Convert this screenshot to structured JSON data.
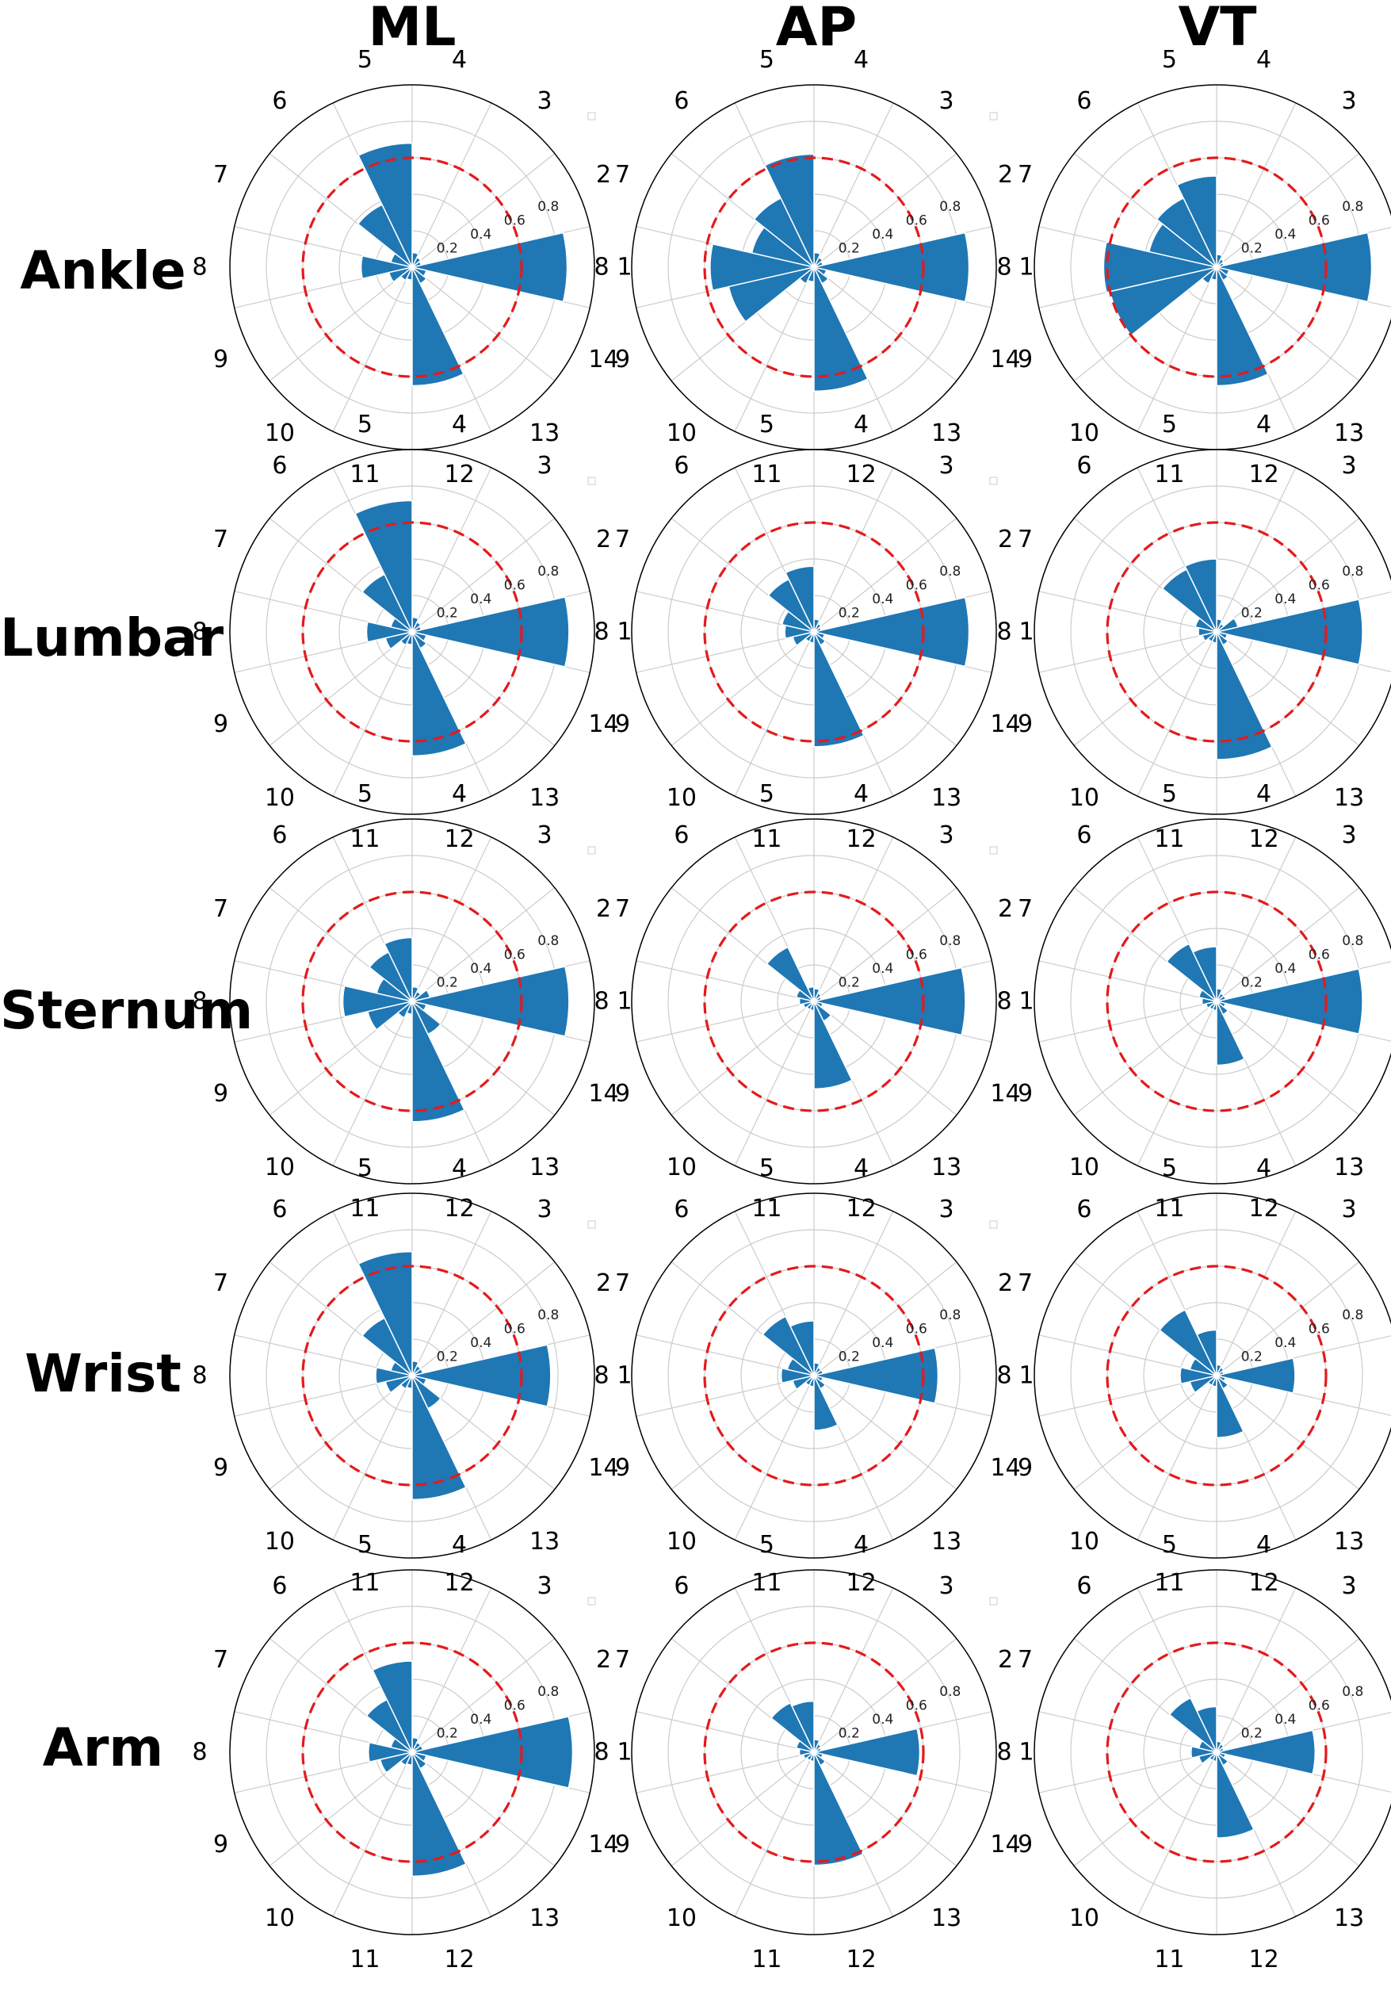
{
  "columns": [
    "ML",
    "AP",
    "VT"
  ],
  "rows": [
    "Ankle",
    "Lumbar",
    "Sternum",
    "Wrist",
    "Arm"
  ],
  "sector_labels": [
    "1",
    "2",
    "3",
    "4",
    "5",
    "6",
    "7",
    "8",
    "9",
    "10",
    "11",
    "12",
    "13",
    "14"
  ],
  "radial_ticks": [
    "0.2",
    "0.4",
    "0.6",
    "0.8"
  ],
  "colors": {
    "bar": "#1f77b4",
    "threshold": "#e41a1c",
    "grid": "#cccccc",
    "outline": "#000000"
  },
  "chart_data": [
    {
      "type": "polar-bar",
      "row": "Ankle",
      "column": "ML",
      "rlim": [
        0,
        1
      ],
      "threshold": 0.6,
      "grid": true,
      "categories": [
        "1",
        "2",
        "3",
        "4",
        "5",
        "6",
        "7",
        "8",
        "9",
        "10",
        "11",
        "12",
        "13",
        "14"
      ],
      "values": [
        0.85,
        0.05,
        0.06,
        0.08,
        0.68,
        0.38,
        0.12,
        0.28,
        0.13,
        0.08,
        0.07,
        0.65,
        0.1,
        0.08
      ]
    },
    {
      "type": "polar-bar",
      "row": "Ankle",
      "column": "AP",
      "rlim": [
        0,
        1
      ],
      "threshold": 0.6,
      "grid": true,
      "categories": [
        "1",
        "2",
        "3",
        "4",
        "5",
        "6",
        "7",
        "8",
        "9",
        "10",
        "11",
        "12",
        "13",
        "14"
      ],
      "values": [
        0.85,
        0.05,
        0.06,
        0.08,
        0.62,
        0.42,
        0.35,
        0.57,
        0.48,
        0.1,
        0.08,
        0.68,
        0.1,
        0.07
      ]
    },
    {
      "type": "polar-bar",
      "row": "Ankle",
      "column": "VT",
      "rlim": [
        0,
        1
      ],
      "threshold": 0.6,
      "grid": true,
      "categories": [
        "1",
        "2",
        "3",
        "4",
        "5",
        "6",
        "7",
        "8",
        "9",
        "10",
        "11",
        "12",
        "13",
        "14"
      ],
      "values": [
        0.85,
        0.04,
        0.05,
        0.07,
        0.5,
        0.42,
        0.38,
        0.62,
        0.6,
        0.1,
        0.07,
        0.65,
        0.08,
        0.07
      ]
    },
    {
      "type": "polar-bar",
      "row": "Lumbar",
      "column": "ML",
      "rlim": [
        0,
        1
      ],
      "threshold": 0.6,
      "grid": true,
      "categories": [
        "1",
        "2",
        "3",
        "4",
        "5",
        "6",
        "7",
        "8",
        "9",
        "10",
        "11",
        "12",
        "13",
        "14"
      ],
      "values": [
        0.86,
        0.05,
        0.06,
        0.08,
        0.72,
        0.35,
        0.12,
        0.25,
        0.15,
        0.08,
        0.07,
        0.68,
        0.1,
        0.08
      ]
    },
    {
      "type": "polar-bar",
      "row": "Lumbar",
      "column": "AP",
      "rlim": [
        0,
        1
      ],
      "threshold": 0.6,
      "grid": true,
      "categories": [
        "1",
        "2",
        "3",
        "4",
        "5",
        "6",
        "7",
        "8",
        "9",
        "10",
        "11",
        "12",
        "13",
        "14"
      ],
      "values": [
        0.85,
        0.04,
        0.05,
        0.07,
        0.36,
        0.32,
        0.18,
        0.16,
        0.12,
        0.06,
        0.06,
        0.63,
        0.08,
        0.06
      ]
    },
    {
      "type": "polar-bar",
      "row": "Lumbar",
      "column": "VT",
      "rlim": [
        0,
        1
      ],
      "threshold": 0.6,
      "grid": true,
      "categories": [
        "1",
        "2",
        "3",
        "4",
        "5",
        "6",
        "7",
        "8",
        "9",
        "10",
        "11",
        "12",
        "13",
        "14"
      ],
      "values": [
        0.8,
        0.12,
        0.05,
        0.07,
        0.4,
        0.38,
        0.12,
        0.1,
        0.08,
        0.06,
        0.06,
        0.7,
        0.08,
        0.06
      ]
    },
    {
      "type": "polar-bar",
      "row": "Sternum",
      "column": "ML",
      "rlim": [
        0,
        1
      ],
      "threshold": 0.6,
      "grid": true,
      "categories": [
        "1",
        "2",
        "3",
        "4",
        "5",
        "6",
        "7",
        "8",
        "9",
        "10",
        "11",
        "12",
        "13",
        "14"
      ],
      "values": [
        0.86,
        0.1,
        0.06,
        0.08,
        0.35,
        0.3,
        0.2,
        0.38,
        0.25,
        0.1,
        0.07,
        0.66,
        0.2,
        0.08
      ]
    },
    {
      "type": "polar-bar",
      "row": "Sternum",
      "column": "AP",
      "rlim": [
        0,
        1
      ],
      "threshold": 0.6,
      "grid": true,
      "categories": [
        "1",
        "2",
        "3",
        "4",
        "5",
        "6",
        "7",
        "8",
        "9",
        "10",
        "11",
        "12",
        "13",
        "14"
      ],
      "values": [
        0.83,
        0.04,
        0.05,
        0.07,
        0.08,
        0.33,
        0.1,
        0.08,
        0.06,
        0.05,
        0.05,
        0.48,
        0.12,
        0.05
      ]
    },
    {
      "type": "polar-bar",
      "row": "Sternum",
      "column": "VT",
      "rlim": [
        0,
        1
      ],
      "threshold": 0.6,
      "grid": true,
      "categories": [
        "1",
        "2",
        "3",
        "4",
        "5",
        "6",
        "7",
        "8",
        "9",
        "10",
        "11",
        "12",
        "13",
        "14"
      ],
      "values": [
        0.8,
        0.05,
        0.05,
        0.07,
        0.3,
        0.35,
        0.1,
        0.08,
        0.06,
        0.05,
        0.05,
        0.35,
        0.08,
        0.05
      ]
    },
    {
      "type": "polar-bar",
      "row": "Wrist",
      "column": "ML",
      "rlim": [
        0,
        1
      ],
      "threshold": 0.6,
      "grid": true,
      "categories": [
        "1",
        "2",
        "3",
        "4",
        "5",
        "6",
        "7",
        "8",
        "9",
        "10",
        "11",
        "12",
        "13",
        "14"
      ],
      "values": [
        0.76,
        0.06,
        0.06,
        0.08,
        0.68,
        0.35,
        0.12,
        0.2,
        0.15,
        0.08,
        0.07,
        0.68,
        0.2,
        0.08
      ]
    },
    {
      "type": "polar-bar",
      "row": "Wrist",
      "column": "AP",
      "rlim": [
        0,
        1
      ],
      "threshold": 0.6,
      "grid": true,
      "categories": [
        "1",
        "2",
        "3",
        "4",
        "5",
        "6",
        "7",
        "8",
        "9",
        "10",
        "11",
        "12",
        "13",
        "14"
      ],
      "values": [
        0.68,
        0.05,
        0.05,
        0.07,
        0.3,
        0.36,
        0.15,
        0.18,
        0.12,
        0.06,
        0.06,
        0.3,
        0.08,
        0.05
      ]
    },
    {
      "type": "polar-bar",
      "row": "Wrist",
      "column": "VT",
      "rlim": [
        0,
        1
      ],
      "threshold": 0.6,
      "grid": true,
      "categories": [
        "1",
        "2",
        "3",
        "4",
        "5",
        "6",
        "7",
        "8",
        "9",
        "10",
        "11",
        "12",
        "13",
        "14"
      ],
      "values": [
        0.43,
        0.04,
        0.05,
        0.06,
        0.25,
        0.4,
        0.15,
        0.2,
        0.15,
        0.06,
        0.06,
        0.34,
        0.08,
        0.05
      ]
    },
    {
      "type": "polar-bar",
      "row": "Arm",
      "column": "ML",
      "rlim": [
        0,
        1
      ],
      "threshold": 0.6,
      "grid": true,
      "categories": [
        "1",
        "2",
        "3",
        "4",
        "5",
        "6",
        "7",
        "8",
        "9",
        "10",
        "11",
        "12",
        "13",
        "14"
      ],
      "values": [
        0.88,
        0.06,
        0.06,
        0.08,
        0.5,
        0.32,
        0.12,
        0.24,
        0.18,
        0.08,
        0.07,
        0.68,
        0.1,
        0.08
      ]
    },
    {
      "type": "polar-bar",
      "row": "Arm",
      "column": "AP",
      "rlim": [
        0,
        1
      ],
      "threshold": 0.6,
      "grid": true,
      "categories": [
        "1",
        "2",
        "3",
        "4",
        "5",
        "6",
        "7",
        "8",
        "9",
        "10",
        "11",
        "12",
        "13",
        "14"
      ],
      "values": [
        0.58,
        0.04,
        0.05,
        0.07,
        0.28,
        0.3,
        0.1,
        0.08,
        0.06,
        0.05,
        0.05,
        0.62,
        0.08,
        0.05
      ]
    },
    {
      "type": "polar-bar",
      "row": "Arm",
      "column": "VT",
      "rlim": [
        0,
        1
      ],
      "threshold": 0.6,
      "grid": true,
      "categories": [
        "1",
        "2",
        "3",
        "4",
        "5",
        "6",
        "7",
        "8",
        "9",
        "10",
        "11",
        "12",
        "13",
        "14"
      ],
      "values": [
        0.54,
        0.04,
        0.05,
        0.06,
        0.25,
        0.33,
        0.1,
        0.14,
        0.1,
        0.05,
        0.05,
        0.47,
        0.08,
        0.05
      ]
    }
  ]
}
